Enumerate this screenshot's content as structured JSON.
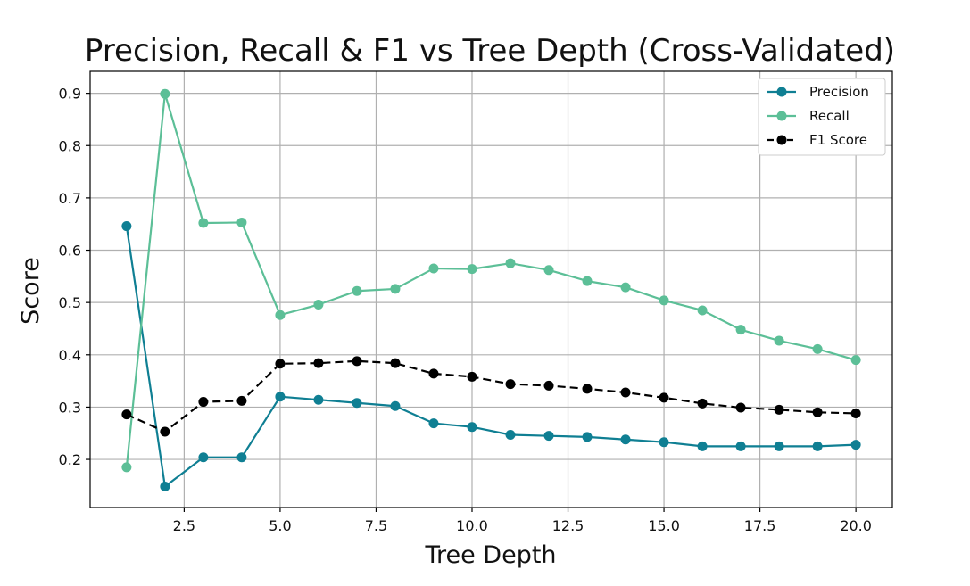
{
  "chart_data": {
    "type": "line",
    "title": "Precision, Recall & F1 vs Tree Depth (Cross-Validated)",
    "xlabel": "Tree Depth",
    "ylabel": "Score",
    "xlim": [
      0.05,
      20.95
    ],
    "ylim": [
      0.108,
      0.942
    ],
    "x_ticks": [
      2.5,
      5.0,
      7.5,
      10.0,
      12.5,
      15.0,
      17.5,
      20.0
    ],
    "x_tick_labels": [
      "2.5",
      "5.0",
      "7.5",
      "10.0",
      "12.5",
      "15.0",
      "17.5",
      "20.0"
    ],
    "y_ticks": [
      0.2,
      0.3,
      0.4,
      0.5,
      0.6,
      0.7,
      0.8,
      0.9
    ],
    "y_tick_labels": [
      "0.2",
      "0.3",
      "0.4",
      "0.5",
      "0.6",
      "0.7",
      "0.8",
      "0.9"
    ],
    "grid": true,
    "legend_position": "top-right",
    "x": [
      1,
      2,
      3,
      4,
      5,
      6,
      7,
      8,
      9,
      10,
      11,
      12,
      13,
      14,
      15,
      16,
      17,
      18,
      19,
      20
    ],
    "series": [
      {
        "name": "Precision",
        "color": "#0f7f93",
        "dashed": false,
        "values": [
          0.646,
          0.148,
          0.204,
          0.204,
          0.32,
          0.314,
          0.308,
          0.302,
          0.269,
          0.262,
          0.247,
          0.245,
          0.243,
          0.238,
          0.233,
          0.225,
          0.225,
          0.225,
          0.225,
          0.228
        ]
      },
      {
        "name": "Recall",
        "color": "#5cbf97",
        "dashed": false,
        "values": [
          0.185,
          0.899,
          0.652,
          0.653,
          0.476,
          0.496,
          0.522,
          0.526,
          0.565,
          0.564,
          0.575,
          0.562,
          0.541,
          0.529,
          0.504,
          0.485,
          0.448,
          0.427,
          0.411,
          0.39
        ]
      },
      {
        "name": "F1 Score",
        "color": "#000000",
        "dashed": true,
        "values": [
          0.286,
          0.253,
          0.31,
          0.312,
          0.383,
          0.384,
          0.388,
          0.384,
          0.364,
          0.358,
          0.344,
          0.341,
          0.335,
          0.328,
          0.318,
          0.307,
          0.299,
          0.295,
          0.29,
          0.288
        ]
      }
    ]
  }
}
